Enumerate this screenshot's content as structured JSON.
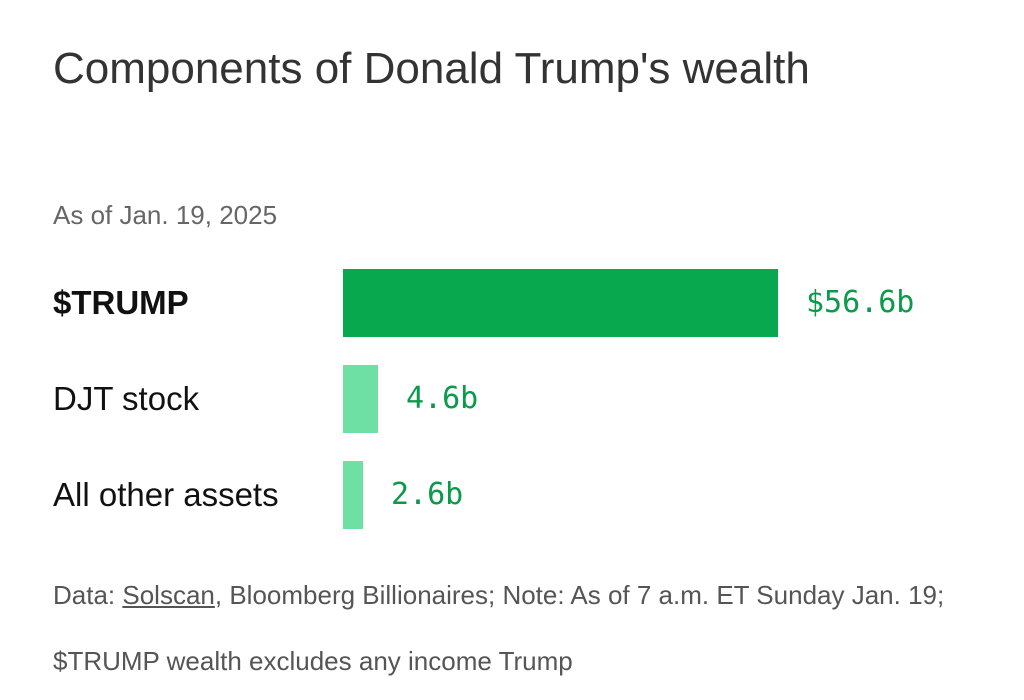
{
  "chart_data": {
    "type": "bar",
    "orientation": "horizontal",
    "title": "Components of Donald Trump's wealth",
    "subtitle": "As of Jan. 19, 2025",
    "categories": [
      "$TRUMP",
      "DJT stock",
      "All other assets"
    ],
    "values": [
      56.6,
      4.6,
      2.6
    ],
    "value_labels": [
      "$56.6b",
      "4.6b",
      "2.6b"
    ],
    "unit": "billion USD",
    "bar_colors": [
      "#07a84e",
      "#6fe0a3",
      "#6fe0a3"
    ],
    "value_label_color": "#0a9a4a",
    "grid": false,
    "legend": "none"
  },
  "note": {
    "prefix": "Data: ",
    "source_link": "Solscan",
    "rest": ", Bloomberg Billionaires; Note: As of 7 a.m. ET Sunday Jan. 19; $TRUMP wealth excludes any income Trump"
  }
}
